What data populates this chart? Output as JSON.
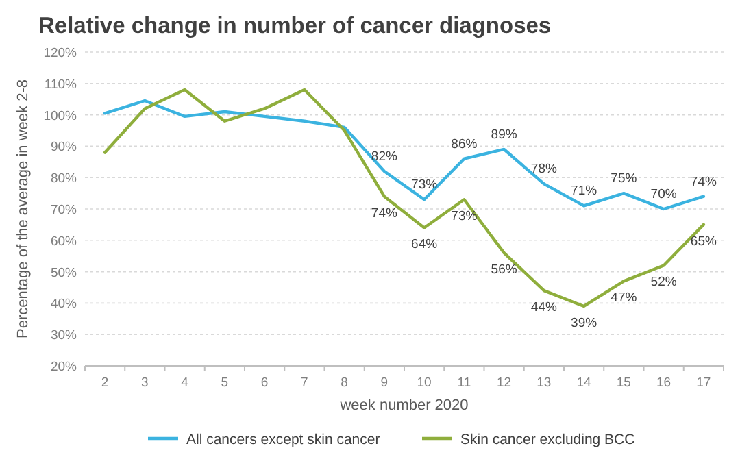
{
  "chart_data": {
    "type": "line",
    "title": "Relative change in number of cancer diagnoses",
    "xlabel": "week number 2020",
    "ylabel": "Percentage of the average in week 2-8",
    "categories": [
      "2",
      "3",
      "4",
      "5",
      "6",
      "7",
      "8",
      "9",
      "10",
      "11",
      "12",
      "13",
      "14",
      "15",
      "16",
      "17"
    ],
    "series": [
      {
        "name": "All cancers except skin cancer",
        "color": "#3bb3e0",
        "values": [
          100.5,
          104.5,
          99.5,
          101,
          99.5,
          98,
          96,
          82,
          73,
          86,
          89,
          78,
          71,
          75,
          70,
          74
        ],
        "value_labels": [
          null,
          null,
          null,
          null,
          null,
          null,
          null,
          "82%",
          "73%",
          "86%",
          "89%",
          "78%",
          "71%",
          "75%",
          "70%",
          "74%"
        ]
      },
      {
        "name": "Skin cancer excluding BCC",
        "color": "#8fae3c",
        "values": [
          88,
          102,
          108,
          98,
          102,
          108,
          95,
          74,
          64,
          73,
          56,
          44,
          39,
          47,
          52,
          65
        ],
        "value_labels": [
          null,
          null,
          null,
          null,
          null,
          null,
          null,
          "74%",
          "64%",
          "73%",
          "56%",
          "44%",
          "39%",
          "47%",
          "52%",
          "65%"
        ]
      }
    ],
    "ylim": [
      20,
      120
    ],
    "yticks": [
      {
        "value": 20,
        "label": "20%"
      },
      {
        "value": 30,
        "label": "30%"
      },
      {
        "value": 40,
        "label": "40%"
      },
      {
        "value": 50,
        "label": "50%"
      },
      {
        "value": 60,
        "label": "60%"
      },
      {
        "value": 70,
        "label": "70%"
      },
      {
        "value": 80,
        "label": "80%"
      },
      {
        "value": 90,
        "label": "90%"
      },
      {
        "value": 100,
        "label": "100%"
      },
      {
        "value": 110,
        "label": "110%"
      },
      {
        "value": 120,
        "label": "120%"
      }
    ],
    "grid": "y",
    "legend": "bottom",
    "marker": "none",
    "line_style": "solid"
  }
}
